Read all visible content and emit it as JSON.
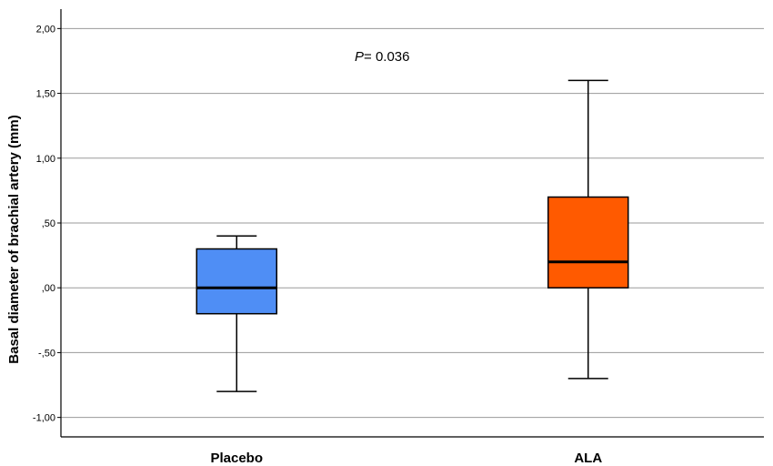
{
  "chart_data": {
    "type": "boxplot",
    "ylabel": "Basal diameter of brachial artery (mm)",
    "xlabel": "",
    "ylim": [
      -1.15,
      2.15
    ],
    "yticks": [
      2.0,
      1.5,
      1.0,
      0.5,
      0.0,
      -0.5,
      -1.0
    ],
    "ytick_labels": [
      "2,00",
      "1,50",
      "1,00",
      ",50",
      ",00",
      "-,50",
      "-1,00"
    ],
    "grid": true,
    "annotation": {
      "italic": "P",
      "text": "= 0.036"
    },
    "categories": [
      "Placebo",
      "ALA"
    ],
    "boxes": [
      {
        "category": "Placebo",
        "whisker_low": -0.8,
        "q1": -0.2,
        "median": 0.0,
        "q3": 0.3,
        "whisker_high": 0.4,
        "color": "#4f8ef5"
      },
      {
        "category": "ALA",
        "whisker_low": -0.7,
        "q1": 0.0,
        "median": 0.2,
        "q3": 0.7,
        "whisker_high": 1.6,
        "color": "#ff5a00"
      }
    ]
  }
}
